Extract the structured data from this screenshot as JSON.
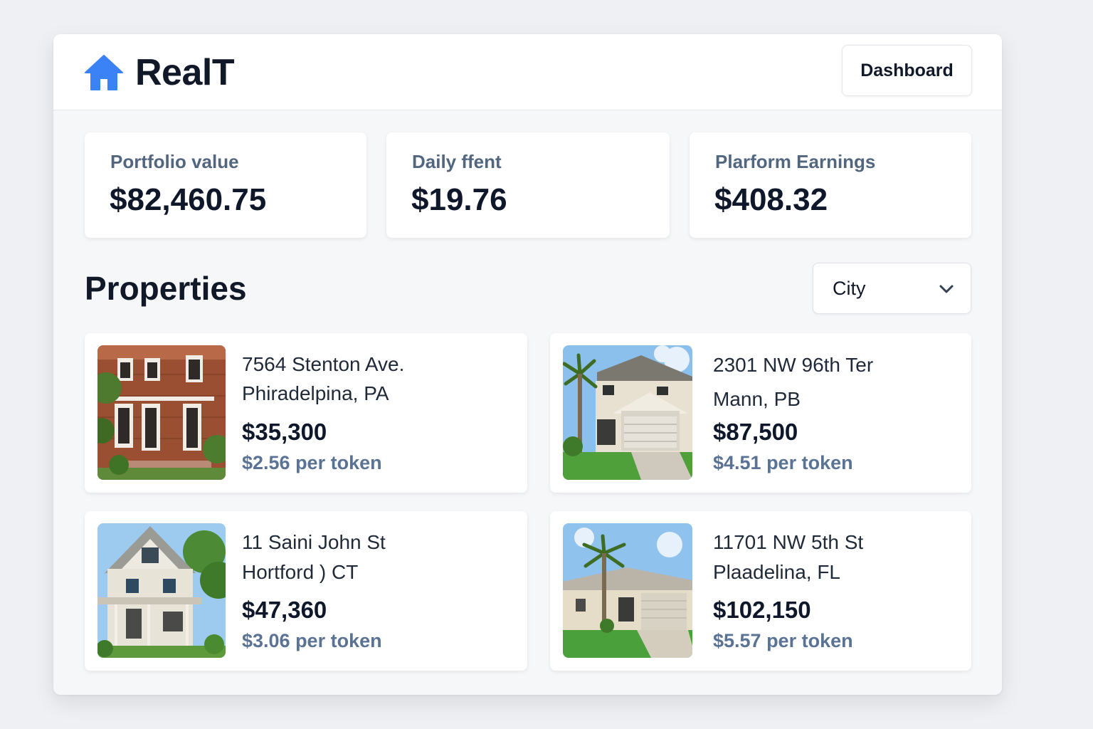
{
  "app": {
    "brand": "RealT",
    "brand_icon": "house-icon",
    "accent_color": "#3b82f6"
  },
  "header": {
    "dashboard_label": "Dashboard"
  },
  "stats": [
    {
      "label": "Portfolio value",
      "value": "$82,460.75"
    },
    {
      "label": "Daily ffent",
      "value": "$19.76"
    },
    {
      "label": "Plarform Earnings",
      "value": "$408.32"
    }
  ],
  "properties": {
    "title": "Properties",
    "filter": {
      "selected": "City",
      "icon": "chevron-down-icon"
    },
    "items": [
      {
        "address_line1": "7564 Stenton Ave.",
        "address_line2": "Phiradelpina, PA",
        "price": "$35,300",
        "token_price": "$2.56 per token",
        "image": "brick-townhouse"
      },
      {
        "address_line1": "2301 NW 96th Ter",
        "address_line2": "Mann, PB",
        "price": "$87,500",
        "token_price": "$4.51 per token",
        "image": "two-story-house-with-palm"
      },
      {
        "address_line1": "11 Saini John St",
        "address_line2": "Hortford ) CT",
        "price": "$47,360",
        "token_price": "$3.06 per token",
        "image": "wooden-house"
      },
      {
        "address_line1": "11701 NW 5th St",
        "address_line2": "Plaadelina, FL",
        "price": "$102,150",
        "token_price": "$5.57 per token",
        "image": "single-story-house-with-palm"
      }
    ]
  }
}
